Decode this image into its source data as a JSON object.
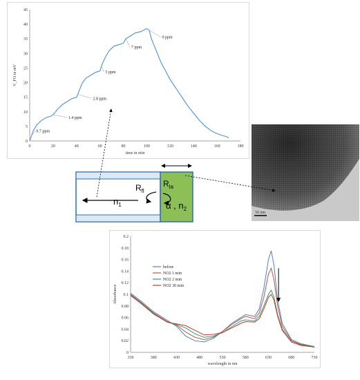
{
  "sensor_chart": {
    "type": "line",
    "ylabel": "V_FO in mV",
    "xlabel": "time in min",
    "xlim": [
      0,
      180
    ],
    "ylim": [
      0,
      45
    ],
    "x_ticks": [
      "0",
      "20",
      "40",
      "60",
      "80",
      "100",
      "120",
      "140",
      "160",
      "180"
    ],
    "y_ticks": [
      "0",
      "5",
      "10",
      "15",
      "20",
      "25",
      "30",
      "35",
      "40",
      "45"
    ],
    "annotations": [
      {
        "text": "0.7 ppm",
        "x": 2,
        "y": 2
      },
      {
        "text": "1.4 ppm",
        "x": 20,
        "y": 9
      },
      {
        "text": "2.8 ppm",
        "x": 41,
        "y": 16
      },
      {
        "text": "5 ppm",
        "x": 61,
        "y": 26
      },
      {
        "text": "7 ppm",
        "x": 82,
        "y": 35
      },
      {
        "text": "0 ppm",
        "x": 100,
        "y": 38.5
      }
    ],
    "series": [
      {
        "points": [
          [
            0,
            0
          ],
          [
            3,
            3.5
          ],
          [
            6,
            5.5
          ],
          [
            10,
            7
          ],
          [
            14,
            8
          ],
          [
            18,
            8.5
          ],
          [
            20,
            9
          ],
          [
            24,
            11
          ],
          [
            28,
            12.5
          ],
          [
            32,
            13.5
          ],
          [
            36,
            14.5
          ],
          [
            40,
            15
          ],
          [
            42,
            17
          ],
          [
            45,
            20
          ],
          [
            48,
            21.5
          ],
          [
            52,
            22.5
          ],
          [
            56,
            23.5
          ],
          [
            60,
            24
          ],
          [
            62,
            26.5
          ],
          [
            65,
            29
          ],
          [
            68,
            31
          ],
          [
            72,
            32.5
          ],
          [
            76,
            33
          ],
          [
            80,
            33.5
          ],
          [
            82,
            35
          ],
          [
            86,
            36
          ],
          [
            90,
            37
          ],
          [
            95,
            37.5
          ],
          [
            100,
            38.5
          ],
          [
            102,
            38
          ],
          [
            104,
            35
          ],
          [
            108,
            31
          ],
          [
            112,
            27
          ],
          [
            116,
            24
          ],
          [
            120,
            21
          ],
          [
            125,
            18
          ],
          [
            130,
            15
          ],
          [
            135,
            12
          ],
          [
            140,
            9.5
          ],
          [
            145,
            7
          ],
          [
            150,
            5
          ],
          [
            155,
            3.5
          ],
          [
            160,
            2.5
          ],
          [
            165,
            1.8
          ],
          [
            168,
            1.5
          ],
          [
            170,
            1
          ]
        ]
      }
    ]
  },
  "schematic": {
    "r_fl_label": "R",
    "r_fl_sub": "fl",
    "r_la_label": "R",
    "r_la_sub": "la",
    "n1_label": "n",
    "n1_sub": "1",
    "alpha_label": "α , n",
    "alpha_sub": "2",
    "colors": {
      "core_border": "#2e6da4",
      "coating": "#8dbf57"
    }
  },
  "tem_image": {
    "scale_label": "50 nm"
  },
  "absorbance_chart": {
    "type": "line",
    "ylabel": "Absorbance",
    "xlabel": "wavelength in nm",
    "xlim": [
      330,
      730
    ],
    "ylim": [
      0,
      0.2
    ],
    "x_ticks": [
      "330",
      "380",
      "430",
      "480",
      "530",
      "580",
      "630",
      "680",
      "730"
    ],
    "y_ticks": [
      "0",
      "0.02",
      "0.04",
      "0.06",
      "0.08",
      "0.1",
      "0.12",
      "0.14",
      "0.16",
      "0.18",
      "0.2"
    ],
    "legend": [
      {
        "name": "before",
        "color": "#4f81bd"
      },
      {
        "name": "NO2 1 min",
        "color": "#c0504d"
      },
      {
        "name": "NO2 2 min",
        "color": "#2e9e6a"
      },
      {
        "name": "NO2 30 min",
        "color": "#c0392b"
      }
    ],
    "series": [
      {
        "name": "before",
        "color": "#4f81bd",
        "points": [
          [
            330,
            0.102
          ],
          [
            350,
            0.09
          ],
          [
            380,
            0.07
          ],
          [
            410,
            0.055
          ],
          [
            430,
            0.045
          ],
          [
            450,
            0.028
          ],
          [
            470,
            0.02
          ],
          [
            490,
            0.018
          ],
          [
            510,
            0.024
          ],
          [
            530,
            0.036
          ],
          [
            550,
            0.05
          ],
          [
            570,
            0.06
          ],
          [
            580,
            0.065
          ],
          [
            600,
            0.062
          ],
          [
            610,
            0.075
          ],
          [
            620,
            0.11
          ],
          [
            630,
            0.16
          ],
          [
            636,
            0.175
          ],
          [
            642,
            0.15
          ],
          [
            650,
            0.09
          ],
          [
            660,
            0.05
          ],
          [
            680,
            0.022
          ],
          [
            700,
            0.015
          ],
          [
            730,
            0.01
          ]
        ]
      },
      {
        "name": "NO2 1 min",
        "color": "#c0504d",
        "points": [
          [
            330,
            0.1
          ],
          [
            350,
            0.088
          ],
          [
            380,
            0.068
          ],
          [
            410,
            0.053
          ],
          [
            430,
            0.047
          ],
          [
            450,
            0.035
          ],
          [
            470,
            0.026
          ],
          [
            490,
            0.022
          ],
          [
            510,
            0.026
          ],
          [
            530,
            0.036
          ],
          [
            550,
            0.048
          ],
          [
            570,
            0.058
          ],
          [
            580,
            0.062
          ],
          [
            600,
            0.058
          ],
          [
            610,
            0.068
          ],
          [
            620,
            0.095
          ],
          [
            630,
            0.135
          ],
          [
            636,
            0.145
          ],
          [
            642,
            0.125
          ],
          [
            650,
            0.08
          ],
          [
            660,
            0.045
          ],
          [
            680,
            0.02
          ],
          [
            700,
            0.014
          ],
          [
            730,
            0.01
          ]
        ]
      },
      {
        "name": "NO2 2 min",
        "color": "#2e9e6a",
        "points": [
          [
            330,
            0.099
          ],
          [
            350,
            0.087
          ],
          [
            380,
            0.067
          ],
          [
            410,
            0.052
          ],
          [
            430,
            0.048
          ],
          [
            450,
            0.042
          ],
          [
            470,
            0.032
          ],
          [
            490,
            0.026
          ],
          [
            510,
            0.028
          ],
          [
            530,
            0.034
          ],
          [
            550,
            0.044
          ],
          [
            570,
            0.054
          ],
          [
            580,
            0.056
          ],
          [
            600,
            0.054
          ],
          [
            610,
            0.062
          ],
          [
            620,
            0.08
          ],
          [
            630,
            0.1
          ],
          [
            636,
            0.107
          ],
          [
            642,
            0.095
          ],
          [
            650,
            0.065
          ],
          [
            660,
            0.04
          ],
          [
            680,
            0.018
          ],
          [
            700,
            0.013
          ],
          [
            730,
            0.01
          ]
        ]
      },
      {
        "name": "NO2 30 min",
        "color": "#c0392b",
        "points": [
          [
            330,
            0.098
          ],
          [
            350,
            0.086
          ],
          [
            380,
            0.066
          ],
          [
            410,
            0.052
          ],
          [
            430,
            0.049
          ],
          [
            450,
            0.046
          ],
          [
            470,
            0.038
          ],
          [
            490,
            0.03
          ],
          [
            510,
            0.031
          ],
          [
            530,
            0.034
          ],
          [
            550,
            0.042
          ],
          [
            570,
            0.05
          ],
          [
            580,
            0.053
          ],
          [
            600,
            0.052
          ],
          [
            610,
            0.058
          ],
          [
            620,
            0.075
          ],
          [
            630,
            0.095
          ],
          [
            636,
            0.1
          ],
          [
            642,
            0.09
          ],
          [
            650,
            0.062
          ],
          [
            660,
            0.038
          ],
          [
            680,
            0.018
          ],
          [
            700,
            0.012
          ],
          [
            730,
            0.009
          ]
        ]
      }
    ]
  }
}
